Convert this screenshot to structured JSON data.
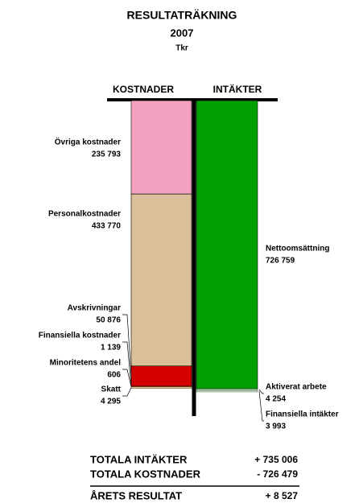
{
  "chart_data": {
    "type": "stacked-bar",
    "title": "RESULTATRÄKNING",
    "subtitle": "2007",
    "unit": "Tkr",
    "categories": [
      "KOSTNADER",
      "INTÄKTER"
    ],
    "series": [
      {
        "name": "Övriga kostnader",
        "color": "#f4a0c0",
        "values": [
          235793,
          null
        ],
        "value_labels": [
          "235 793",
          null
        ]
      },
      {
        "name": "Personalkostnader",
        "color": "#d9c09a",
        "values": [
          433770,
          null
        ],
        "value_labels": [
          "433 770",
          null
        ]
      },
      {
        "name": "Avskrivningar",
        "color": "#d40000",
        "values": [
          50876,
          null
        ],
        "value_labels": [
          "50 876",
          null
        ]
      },
      {
        "name": "Finansiella kostnader",
        "color": "#e08040",
        "values": [
          1139,
          null
        ],
        "value_labels": [
          "1 139",
          null
        ]
      },
      {
        "name": "Minoritetens andel",
        "color": "#c0a060",
        "values": [
          606,
          null
        ],
        "value_labels": [
          "606",
          null
        ]
      },
      {
        "name": "Skatt",
        "color": "#e8c890",
        "values": [
          4295,
          null
        ],
        "value_labels": [
          "4 295",
          null
        ]
      },
      {
        "name": "Nettoomsättning",
        "color": "#00a000",
        "values": [
          null,
          726759
        ],
        "value_labels": [
          null,
          "726 759"
        ]
      },
      {
        "name": "Aktiverat arbete",
        "color": "#9ad09a",
        "values": [
          null,
          4254
        ],
        "value_labels": [
          null,
          "4 254"
        ]
      },
      {
        "name": "Finansiella intäkter",
        "color": "#d0ecd0",
        "values": [
          null,
          3993
        ],
        "value_labels": [
          null,
          "3 993"
        ]
      }
    ],
    "totals": [
      {
        "label": "TOTALA INTÄKTER",
        "value": 735006,
        "value_label": "+ 735 006"
      },
      {
        "label": "TOTALA KOSTNADER",
        "value": -726479,
        "value_label": "- 726 479"
      },
      {
        "label": "ÅRETS RESULTAT",
        "value": 8527,
        "value_label": "+ 8 527"
      }
    ]
  }
}
